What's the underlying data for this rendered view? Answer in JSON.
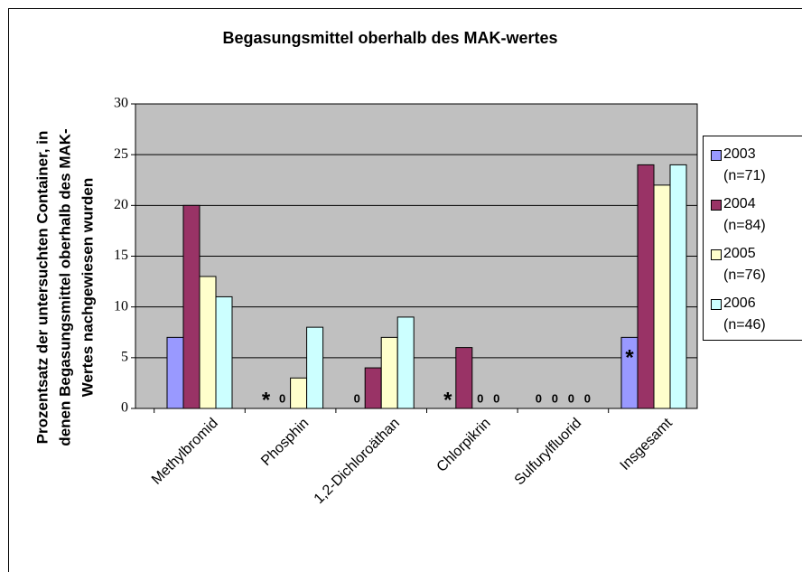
{
  "chart_data": {
    "type": "bar",
    "title": "Begasungsmittel oberhalb des MAK-wertes",
    "ylabel": [
      "Prozentsatz der untersuchten Container, in",
      "denen Begasungsmittel oberhalb des MAK-",
      "Wertes nachgewiesen wurden"
    ],
    "categories": [
      "Methylbromid",
      "Phosphin",
      "1,2-Dichloroäthan",
      "Chlorpikrin",
      "Sulfurylfluorid",
      "Insgesamt"
    ],
    "series": [
      {
        "name": "2003 (n=71)",
        "color": "#9999ff",
        "values": [
          7,
          null,
          0,
          null,
          0,
          7
        ]
      },
      {
        "name": "2004 (n=84)",
        "color": "#993366",
        "values": [
          20,
          0,
          4,
          6,
          0,
          24
        ]
      },
      {
        "name": "2005 (n=76)",
        "color": "#ffffcc",
        "values": [
          13,
          3,
          7,
          0,
          0,
          22
        ]
      },
      {
        "name": "2006 (n=46)",
        "color": "#ccffff",
        "values": [
          11,
          8,
          9,
          0,
          0,
          24
        ]
      }
    ],
    "annotations": [
      {
        "text": "*",
        "series": 0,
        "category": 1
      },
      {
        "text": "*",
        "series": 0,
        "category": 3
      },
      {
        "text": "*",
        "series": 0,
        "category": 5
      }
    ],
    "ylim": [
      0,
      30
    ],
    "yticks": [
      0,
      5,
      10,
      15,
      20,
      25,
      30
    ],
    "grid": true,
    "plot_background": "#c0c0c0",
    "legend": "right"
  }
}
